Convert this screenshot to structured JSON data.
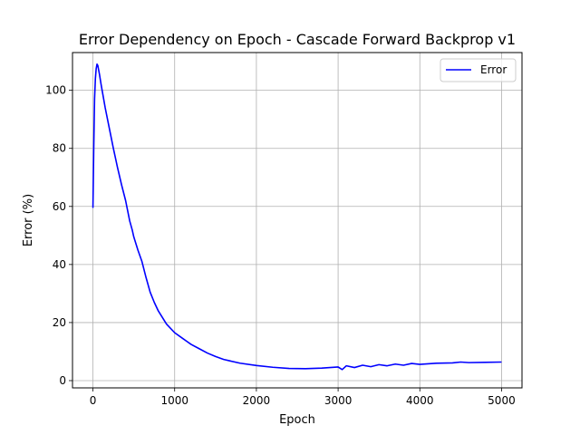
{
  "chart_data": {
    "type": "line",
    "title": "Error Dependency on Epoch - Cascade Forward Backprop v1",
    "xlabel": "Epoch",
    "ylabel": "Error (%)",
    "xlim": [
      -250,
      5250
    ],
    "ylim": [
      -2.5,
      113
    ],
    "xticks": [
      0,
      1000,
      2000,
      3000,
      4000,
      5000
    ],
    "xtick_labels": [
      "0",
      "1000",
      "2000",
      "3000",
      "4000",
      "5000"
    ],
    "yticks": [
      0,
      20,
      40,
      60,
      80,
      100
    ],
    "ytick_labels": [
      "0",
      "20",
      "40",
      "60",
      "80",
      "100"
    ],
    "grid": true,
    "legend_position": "top-right",
    "series": [
      {
        "name": "Error",
        "color": "#0000ff",
        "x": [
          0,
          10,
          20,
          30,
          40,
          50,
          60,
          70,
          80,
          100,
          125,
          150,
          200,
          250,
          300,
          350,
          400,
          450,
          480,
          500,
          550,
          600,
          650,
          700,
          750,
          800,
          900,
          1000,
          1100,
          1150,
          1200,
          1300,
          1400,
          1500,
          1600,
          1800,
          2000,
          2200,
          2400,
          2600,
          2800,
          3000,
          3050,
          3100,
          3200,
          3300,
          3400,
          3500,
          3600,
          3700,
          3800,
          3900,
          4000,
          4200,
          4400,
          4500,
          4600,
          4800,
          5000
        ],
        "y": [
          59.5,
          80,
          97,
          104,
          107.5,
          109,
          108.5,
          107,
          105.5,
          102,
          98,
          94,
          87,
          80,
          73.5,
          67.5,
          62,
          55,
          52,
          49.5,
          45,
          41,
          35.5,
          30.5,
          27,
          24,
          19.5,
          16.5,
          14.5,
          13.5,
          12.5,
          11,
          9.5,
          8.3,
          7.3,
          6,
          5.2,
          4.6,
          4.2,
          4.1,
          4.3,
          4.7,
          3.8,
          5.1,
          4.5,
          5.3,
          4.8,
          5.5,
          5.1,
          5.7,
          5.3,
          5.9,
          5.6,
          6,
          6.1,
          6.4,
          6.2,
          6.3,
          6.4
        ]
      }
    ]
  }
}
